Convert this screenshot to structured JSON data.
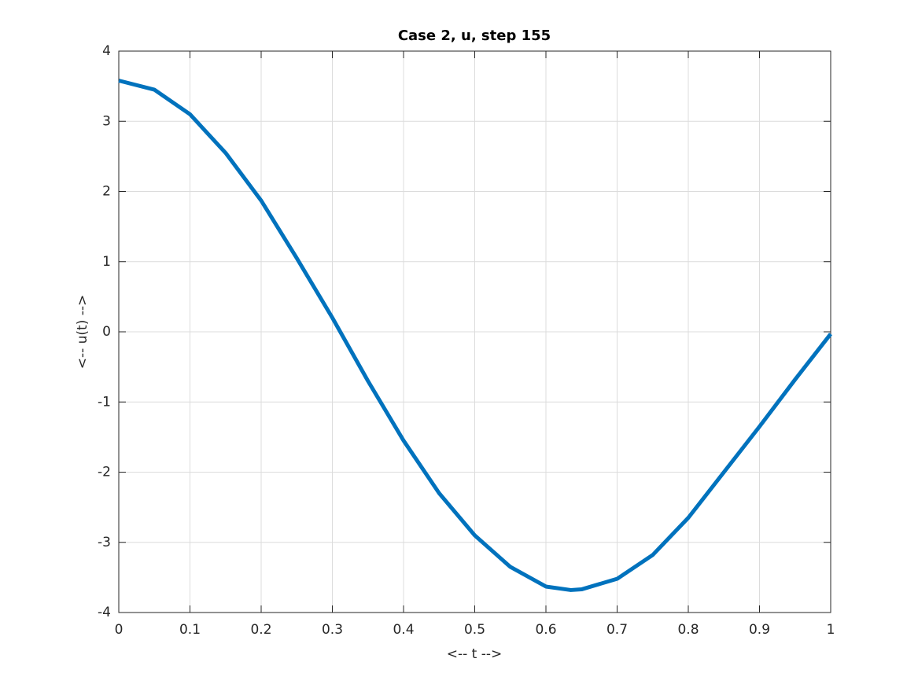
{
  "chart_data": {
    "type": "line",
    "title": "Case 2, u, step 155",
    "xlabel": "<-- t -->",
    "ylabel": "<-- u(t) -->",
    "x": [
      0,
      0.05,
      0.1,
      0.15,
      0.2,
      0.25,
      0.3,
      0.35,
      0.4,
      0.45,
      0.5,
      0.55,
      0.6,
      0.635,
      0.65,
      0.7,
      0.75,
      0.8,
      0.85,
      0.9,
      0.95,
      1.0
    ],
    "series": [
      {
        "name": "u",
        "color": "#0072bd",
        "values": [
          3.58,
          3.45,
          3.1,
          2.55,
          1.87,
          1.05,
          0.2,
          -0.7,
          -1.55,
          -2.3,
          -2.9,
          -3.35,
          -3.63,
          -3.68,
          -3.67,
          -3.52,
          -3.18,
          -2.65,
          -2.0,
          -1.35,
          -0.68,
          -0.03
        ]
      }
    ],
    "xlim": [
      0,
      1
    ],
    "xticks": [
      0,
      0.1,
      0.2,
      0.3,
      0.4,
      0.5,
      0.6,
      0.7,
      0.8,
      0.9,
      1
    ],
    "ylim": [
      -4,
      4
    ],
    "yticks": [
      -4,
      -3,
      -2,
      -1,
      0,
      1,
      2,
      3,
      4
    ],
    "grid": true
  }
}
